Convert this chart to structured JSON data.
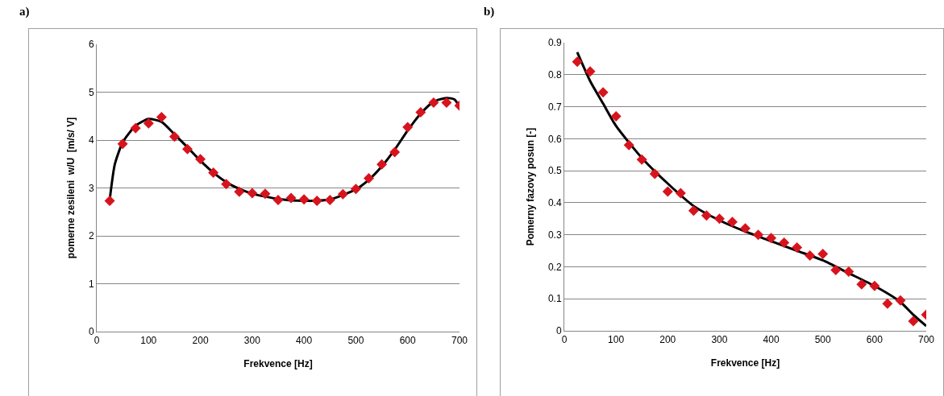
{
  "chart_data": [
    {
      "type": "scatter",
      "title": "a)",
      "xlabel": "Frekvence [Hz]",
      "ylabel": "pomerne zesileni  w/U  [m/s/ V]",
      "xlim": [
        0,
        700
      ],
      "xticks": [
        0,
        100,
        200,
        300,
        400,
        500,
        600,
        700
      ],
      "ylim": [
        0,
        6
      ],
      "yticks": [
        0,
        1,
        2,
        3,
        4,
        5,
        6
      ],
      "grid": "y",
      "x": [
        25,
        50,
        75,
        100,
        125,
        150,
        175,
        200,
        225,
        250,
        275,
        300,
        325,
        350,
        375,
        400,
        425,
        450,
        475,
        500,
        525,
        550,
        575,
        600,
        625,
        650,
        675,
        700
      ],
      "series": [
        {
          "type": "scatter",
          "color": "#d7141e",
          "marker": "diamond",
          "values": [
            2.73,
            3.92,
            4.25,
            4.35,
            4.48,
            4.07,
            3.81,
            3.6,
            3.32,
            3.08,
            2.92,
            2.89,
            2.88,
            2.75,
            2.79,
            2.76,
            2.73,
            2.75,
            2.87,
            2.98,
            3.2,
            3.49,
            3.75,
            4.27,
            4.58,
            4.78,
            4.78,
            4.72
          ]
        },
        {
          "type": "line",
          "color": "#000000",
          "marker": "none",
          "line_style": "solid",
          "x": [
            25,
            35,
            50,
            75,
            100,
            125,
            150,
            175,
            200,
            225,
            250,
            275,
            300,
            350,
            400,
            450,
            500,
            525,
            550,
            575,
            600,
            625,
            650,
            675,
            690,
            700
          ],
          "values": [
            2.75,
            3.5,
            3.95,
            4.3,
            4.44,
            4.38,
            4.12,
            3.85,
            3.57,
            3.32,
            3.12,
            2.98,
            2.88,
            2.77,
            2.73,
            2.76,
            2.97,
            3.17,
            3.45,
            3.8,
            4.2,
            4.55,
            4.8,
            4.88,
            4.85,
            4.7
          ]
        }
      ]
    },
    {
      "type": "scatter",
      "title": "b)",
      "xlabel": "Frekvence [Hz]",
      "ylabel": "Pomerny fazovy posun [-]",
      "xlim": [
        0,
        700
      ],
      "xticks": [
        0,
        100,
        200,
        300,
        400,
        500,
        600,
        700
      ],
      "ylim": [
        0,
        0.9
      ],
      "yticks": [
        0,
        0.1,
        0.2,
        0.3,
        0.4,
        0.5,
        0.6,
        0.7,
        0.8,
        0.9
      ],
      "grid": "y",
      "x": [
        25,
        50,
        75,
        100,
        125,
        150,
        175,
        200,
        225,
        250,
        275,
        300,
        325,
        350,
        375,
        400,
        425,
        450,
        475,
        500,
        525,
        550,
        575,
        600,
        625,
        650,
        675,
        700
      ],
      "series": [
        {
          "type": "scatter",
          "color": "#d7141e",
          "marker": "diamond",
          "values": [
            0.84,
            0.81,
            0.745,
            0.67,
            0.58,
            0.535,
            0.49,
            0.435,
            0.43,
            0.375,
            0.36,
            0.35,
            0.34,
            0.32,
            0.3,
            0.29,
            0.275,
            0.26,
            0.235,
            0.24,
            0.19,
            0.185,
            0.145,
            0.14,
            0.085,
            0.095,
            0.03,
            0.05
          ]
        },
        {
          "type": "line",
          "color": "#000000",
          "marker": "none",
          "line_style": "solid",
          "x": [
            25,
            50,
            75,
            100,
            150,
            200,
            250,
            300,
            350,
            400,
            450,
            500,
            550,
            600,
            650,
            675,
            700
          ],
          "values": [
            0.87,
            0.78,
            0.71,
            0.64,
            0.54,
            0.46,
            0.39,
            0.345,
            0.31,
            0.28,
            0.25,
            0.22,
            0.18,
            0.14,
            0.09,
            0.05,
            0.015
          ]
        }
      ]
    }
  ]
}
